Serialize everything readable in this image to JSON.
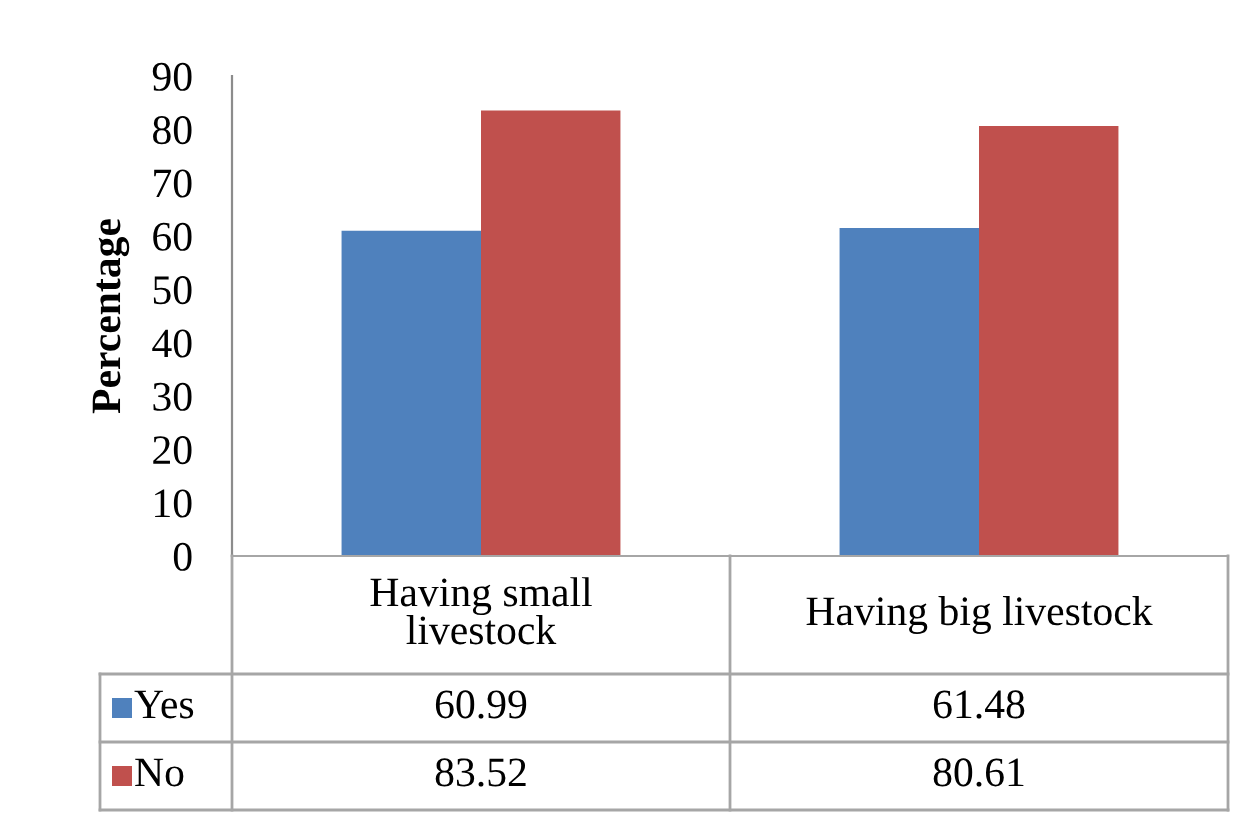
{
  "chart_data": {
    "type": "bar",
    "ylabel": "Percentage",
    "categories": [
      "Having small livestock",
      "Having big livestock"
    ],
    "series": [
      {
        "name": "Yes",
        "color": "#4f81bd",
        "values": [
          60.99,
          61.48
        ]
      },
      {
        "name": "No",
        "color": "#c0504d",
        "values": [
          83.52,
          80.61
        ]
      }
    ],
    "ylim": [
      0,
      90
    ],
    "yticks": [
      0,
      10,
      20,
      30,
      40,
      50,
      60,
      70,
      80,
      90
    ],
    "data_labels": true,
    "legend": "bottom"
  }
}
